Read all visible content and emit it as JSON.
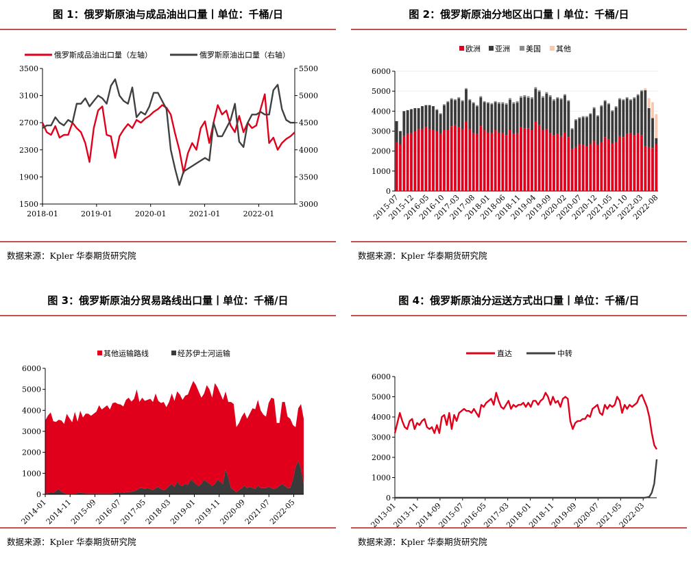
{
  "source_label": "数据来源：Kpler 华泰期货研究院",
  "chart_data": [
    {
      "id": "fig1",
      "title": "图 1：俄罗斯原油与成品油出口量丨单位：千桶/日",
      "type": "line",
      "legend_position": "top",
      "x_labels": [
        "2018-01",
        "2019-01",
        "2020-01",
        "2021-01",
        "2022-01"
      ],
      "x_start": "2018-01",
      "x_end": "2022-09",
      "ylim_left": [
        1500,
        3500
      ],
      "yticks_left": [
        1500,
        1900,
        2300,
        2700,
        3100,
        3500
      ],
      "ylim_right": [
        3000,
        5500
      ],
      "yticks_right": [
        3000,
        3500,
        4000,
        4500,
        5000,
        5500
      ],
      "series": [
        {
          "name": "俄罗斯成品油出口量（左轴）",
          "color": "#e0001b",
          "axis": "left",
          "values": [
            2700,
            2560,
            2520,
            2650,
            2480,
            2520,
            2520,
            2700,
            2620,
            2560,
            2400,
            2120,
            2620,
            2880,
            2940,
            2520,
            2500,
            2180,
            2500,
            2600,
            2680,
            2620,
            2740,
            2700,
            2760,
            2800,
            2860,
            2900,
            2960,
            2920,
            2820,
            2540,
            2300,
            1960,
            2250,
            2400,
            2300,
            2620,
            2720,
            2400,
            2700,
            2960,
            2820,
            2880,
            2660,
            2560,
            2800,
            2560,
            2700,
            2620,
            2660,
            2900,
            3120,
            2400,
            2480,
            2300,
            2400,
            2460,
            2500,
            2560
          ]
        },
        {
          "name": "俄罗斯原油出口量（右轴）",
          "color": "#404040",
          "axis": "right",
          "values": [
            4400,
            4450,
            4450,
            4600,
            4500,
            4450,
            4550,
            4500,
            4850,
            4850,
            4950,
            4800,
            4900,
            5000,
            4950,
            4850,
            5180,
            5300,
            5000,
            4900,
            4850,
            5150,
            4600,
            4700,
            4650,
            4800,
            5050,
            5050,
            4900,
            4750,
            4000,
            3650,
            3350,
            3600,
            3650,
            3700,
            3750,
            3800,
            3850,
            3800,
            4500,
            4250,
            4250,
            4400,
            4550,
            4850,
            4150,
            4050,
            4500,
            4650,
            4650,
            4700,
            4650,
            4650,
            5100,
            5200,
            4750,
            4550,
            4500,
            4500
          ]
        }
      ]
    },
    {
      "id": "fig2",
      "title": "图 2：俄罗斯原油分地区出口量丨单位：千桶/日",
      "type": "bar",
      "stacked": true,
      "legend_position": "top",
      "x_labels": [
        "2015-07",
        "2015-12",
        "2016-05",
        "2016-10",
        "2017-03",
        "2017-08",
        "2018-01",
        "2018-06",
        "2018-11",
        "2019-04",
        "2019-09",
        "2020-02",
        "2020-07",
        "2020-12",
        "2021-05",
        "2021-10",
        "2022-03",
        "2022-08"
      ],
      "ylim": [
        0,
        6000
      ],
      "yticks": [
        0,
        1000,
        2000,
        3000,
        4000,
        5000,
        6000
      ],
      "series_names": [
        "欧洲",
        "亚洲",
        "美国",
        "其他"
      ],
      "series_colors": [
        "#e0001b",
        "#3a3a3a",
        "#8c8c8c",
        "#f8c8b0"
      ],
      "totals": [
        3500,
        3000,
        4000,
        4050,
        4100,
        4150,
        4150,
        4250,
        4300,
        4300,
        4250,
        4100,
        3900,
        4350,
        4500,
        4650,
        4600,
        4700,
        4550,
        5150,
        4600,
        4450,
        4300,
        4750,
        4500,
        4450,
        4400,
        4500,
        4450,
        4450,
        4400,
        4650,
        4450,
        4500,
        4750,
        4800,
        4750,
        4700,
        5200,
        5050,
        4750,
        4950,
        4800,
        4600,
        4700,
        4650,
        4850,
        4550,
        3150,
        3600,
        3700,
        3750,
        3750,
        3900,
        4200,
        3800,
        4300,
        4550,
        4400,
        4050,
        4250,
        4650,
        4600,
        4700,
        4600,
        4700,
        4850,
        5050,
        5150,
        4650,
        4450,
        3850
      ],
      "europe": [
        2450,
        2350,
        2750,
        2850,
        2900,
        3000,
        3100,
        3100,
        3200,
        3100,
        3050,
        3000,
        2850,
        3050,
        3050,
        3250,
        3300,
        3200,
        3100,
        3500,
        3100,
        2900,
        2850,
        3250,
        3050,
        2950,
        2900,
        3050,
        2950,
        2900,
        2800,
        3050,
        2850,
        2900,
        3200,
        3150,
        3150,
        3050,
        3500,
        3300,
        3050,
        3100,
        2900,
        2800,
        2850,
        2750,
        2950,
        2700,
        2100,
        2200,
        2350,
        2300,
        2250,
        2350,
        2500,
        2300,
        2450,
        2700,
        2600,
        2400,
        2450,
        2750,
        2700,
        2850,
        2900,
        2800,
        2900,
        2800,
        2250,
        2200,
        2150,
        2350
      ],
      "usa": [
        0,
        0,
        0,
        0,
        0,
        0,
        0,
        0,
        0,
        0,
        0,
        50,
        50,
        60,
        60,
        60,
        60,
        60,
        60,
        60,
        60,
        60,
        60,
        60,
        60,
        60,
        60,
        60,
        80,
        80,
        80,
        80,
        80,
        80,
        80,
        80,
        80,
        80,
        80,
        80,
        80,
        80,
        80,
        80,
        60,
        60,
        60,
        60,
        60,
        60,
        60,
        60,
        60,
        60,
        60,
        60,
        60,
        60,
        60,
        60,
        60,
        60,
        60,
        60,
        60,
        60,
        60,
        60,
        0,
        0,
        0,
        0
      ],
      "other": [
        0,
        0,
        0,
        0,
        0,
        0,
        0,
        0,
        0,
        0,
        0,
        0,
        0,
        0,
        0,
        0,
        0,
        0,
        0,
        0,
        0,
        0,
        0,
        0,
        0,
        0,
        0,
        0,
        0,
        0,
        0,
        0,
        0,
        0,
        0,
        0,
        0,
        0,
        0,
        0,
        0,
        0,
        0,
        0,
        0,
        0,
        0,
        0,
        0,
        0,
        0,
        0,
        0,
        0,
        0,
        0,
        0,
        0,
        0,
        0,
        0,
        0,
        0,
        0,
        0,
        0,
        0,
        0,
        100,
        500,
        800,
        1200
      ]
    },
    {
      "id": "fig3",
      "title": "图 3：俄罗斯原油分贸易路线出口量丨单位：千桶/日",
      "type": "area",
      "stacked": true,
      "legend_position": "top",
      "x_labels": [
        "2014-01",
        "2014-11",
        "2015-09",
        "2016-07",
        "2017-05",
        "2018-03",
        "2019-01",
        "2019-11",
        "2020-09",
        "2021-07",
        "2022-05"
      ],
      "x_start": "2014-01",
      "x_end": "2022-09",
      "ylim": [
        0,
        6000
      ],
      "yticks": [
        0,
        1000,
        2000,
        3000,
        4000,
        5000,
        6000
      ],
      "series": [
        {
          "name": "其他运输路线",
          "color": "#e0001b",
          "values": [
            3500,
            3700,
            3800,
            3400,
            3300,
            3300,
            3400,
            3300,
            3800,
            3600,
            3400,
            3900,
            3400,
            3900,
            3600,
            3800,
            3800,
            3700,
            3800,
            3900,
            4200,
            4000,
            4100,
            4200,
            4000,
            4300,
            4300,
            4200,
            4200,
            4100,
            4400,
            4500,
            4300,
            4400,
            4800,
            4100,
            4300,
            4200,
            4200,
            4300,
            4200,
            4500,
            4100,
            4100,
            4200,
            3900,
            4000,
            4300,
            4100,
            4300,
            4300,
            4100,
            4200,
            4300,
            4400,
            4800,
            4700,
            4500,
            4100,
            4100,
            4600,
            4500,
            4200,
            4800,
            4400,
            4200,
            4000,
            3700,
            3600,
            4100,
            4100,
            3100,
            3200,
            3400,
            3500,
            3300,
            3500,
            3800,
            3800,
            4100,
            3700,
            3500,
            3400,
            4000,
            4300,
            4300,
            3100,
            3000,
            3900,
            4000,
            3400,
            3300,
            2600,
            1900,
            2500,
            3100,
            3100
          ]
        },
        {
          "name": "经苏伊士河运输",
          "color": "#3a3a3a",
          "values": [
            20,
            50,
            100,
            80,
            150,
            250,
            120,
            50,
            30,
            30,
            30,
            30,
            60,
            80,
            60,
            40,
            40,
            40,
            40,
            40,
            40,
            40,
            40,
            40,
            40,
            40,
            80,
            100,
            80,
            80,
            100,
            100,
            120,
            150,
            200,
            300,
            300,
            250,
            300,
            250,
            200,
            300,
            350,
            250,
            200,
            250,
            400,
            500,
            350,
            600,
            450,
            400,
            500,
            450,
            700,
            600,
            500,
            400,
            500,
            700,
            600,
            500,
            400,
            500,
            700,
            600,
            500,
            1200,
            800,
            300,
            200,
            100,
            200,
            300,
            400,
            300,
            350,
            300,
            250,
            400,
            300,
            300,
            300,
            350,
            300,
            250,
            300,
            400,
            500,
            400,
            300,
            300,
            700,
            1300,
            1600,
            1200,
            500
          ]
        }
      ]
    },
    {
      "id": "fig4",
      "title": "图 4：俄罗斯原油分运送方式出口量丨单位：千桶/日",
      "type": "line",
      "legend_position": "top",
      "x_labels": [
        "2013-01",
        "2013-11",
        "2014-09",
        "2015-07",
        "2016-05",
        "2017-03",
        "2018-01",
        "2018-11",
        "2019-09",
        "2020-07",
        "2021-05",
        "2022-03"
      ],
      "x_start": "2013-01",
      "x_end": "2022-09",
      "ylim": [
        0,
        6000
      ],
      "yticks": [
        0,
        1000,
        2000,
        3000,
        4000,
        5000,
        6000
      ],
      "series": [
        {
          "name": "直达",
          "color": "#e0001b",
          "values": [
            3200,
            3700,
            4200,
            3800,
            3500,
            3400,
            3800,
            3900,
            3400,
            3700,
            3600,
            3800,
            3900,
            3500,
            3400,
            3500,
            3200,
            3600,
            3200,
            4000,
            4100,
            3600,
            4200,
            3400,
            4100,
            3800,
            4200,
            4300,
            4400,
            4300,
            4300,
            4200,
            4400,
            4200,
            4000,
            4600,
            4500,
            4700,
            4800,
            4900,
            4600,
            5200,
            4800,
            4500,
            4400,
            4600,
            4800,
            4400,
            4600,
            4500,
            4600,
            4600,
            4700,
            4500,
            4700,
            4500,
            4800,
            4800,
            4600,
            4800,
            4900,
            5200,
            5000,
            4600,
            5000,
            4700,
            4800,
            4500,
            4900,
            5000,
            4900,
            3800,
            3400,
            3700,
            3800,
            3800,
            3900,
            3900,
            4100,
            4000,
            4400,
            4500,
            4600,
            4200,
            4100,
            4600,
            4400,
            4600,
            4500,
            4600,
            5000,
            4800,
            4200,
            4600,
            4400,
            4600,
            4500,
            4600,
            4700,
            5000,
            5100,
            4800,
            4500,
            4000,
            3200,
            2600,
            2400
          ]
        },
        {
          "name": "中转",
          "color": "#404040",
          "values": [
            0,
            0,
            0,
            0,
            0,
            0,
            0,
            0,
            0,
            0,
            0,
            0,
            0,
            0,
            0,
            0,
            0,
            0,
            0,
            0,
            0,
            0,
            0,
            0,
            0,
            0,
            0,
            0,
            0,
            0,
            0,
            0,
            0,
            0,
            0,
            0,
            0,
            0,
            0,
            0,
            0,
            0,
            0,
            0,
            0,
            0,
            0,
            0,
            0,
            0,
            0,
            0,
            0,
            0,
            0,
            0,
            0,
            0,
            0,
            0,
            0,
            0,
            0,
            0,
            0,
            0,
            0,
            0,
            0,
            0,
            0,
            0,
            0,
            0,
            0,
            0,
            0,
            0,
            0,
            0,
            0,
            0,
            0,
            0,
            0,
            0,
            0,
            0,
            0,
            0,
            0,
            0,
            0,
            0,
            0,
            0,
            0,
            0,
            0,
            0,
            0,
            0,
            20,
            50,
            250,
            700,
            1900
          ]
        }
      ]
    }
  ]
}
